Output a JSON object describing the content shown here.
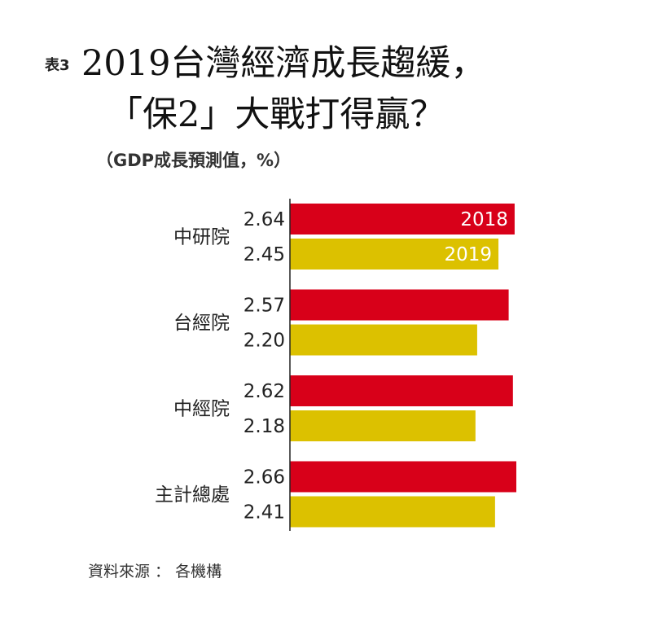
{
  "header": {
    "tag": "表3",
    "title_line1": "2019台灣經濟成長趨緩，",
    "title_line2": "「保2」大戰打得贏？",
    "unit": "（GDP成長預測值，%）"
  },
  "source": "資料來源 ： 各機構",
  "chart_data": {
    "type": "bar",
    "orientation": "horizontal",
    "categories": [
      "中研院",
      "台經院",
      "中經院",
      "主計總處"
    ],
    "series": [
      {
        "name": "2018",
        "color": "#d80019",
        "values": [
          2.64,
          2.57,
          2.62,
          2.66
        ]
      },
      {
        "name": "2019",
        "color": "#dcc100",
        "values": [
          2.45,
          2.2,
          2.18,
          2.41
        ]
      }
    ],
    "value_labels": [
      [
        "2.64",
        "2.45"
      ],
      [
        "2.57",
        "2.20"
      ],
      [
        "2.62",
        "2.18"
      ],
      [
        "2.66",
        "2.41"
      ]
    ],
    "xlim": [
      0,
      2.66
    ],
    "grid": false,
    "legend_placement": "inside-first-bars"
  }
}
